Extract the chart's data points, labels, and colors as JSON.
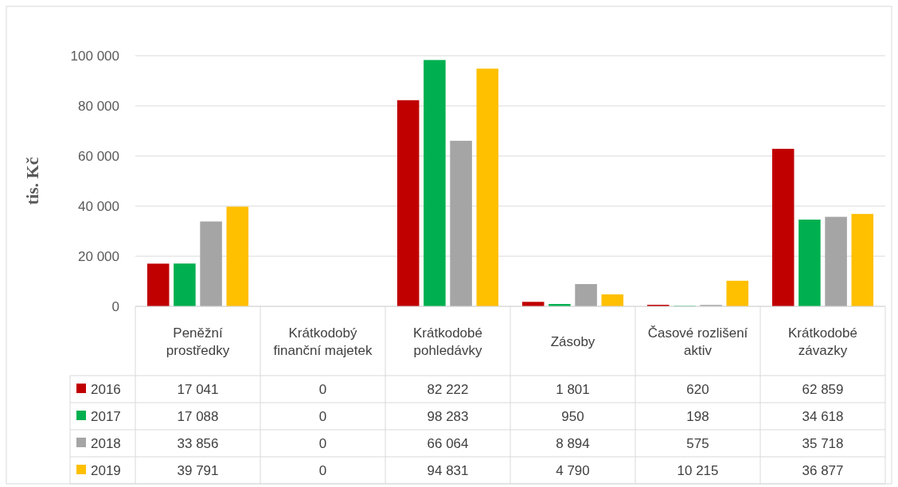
{
  "chart_data": {
    "type": "bar",
    "ylabel": "tis. Kč",
    "categories": [
      "Peněžní prostředky",
      "Krátkodobý finanční majetek",
      "Krátkodobé pohledávky",
      "Zásoby",
      "Časové rozlišení aktiv",
      "Krátkodobé závazky"
    ],
    "series": [
      {
        "name": "2016",
        "color": "#c00000",
        "values": [
          17041,
          0,
          82222,
          1801,
          620,
          62859
        ],
        "value_labels": [
          "17 041",
          "0",
          "82 222",
          "1 801",
          "620",
          "62 859"
        ]
      },
      {
        "name": "2017",
        "color": "#00b050",
        "values": [
          17088,
          0,
          98283,
          950,
          198,
          34618
        ],
        "value_labels": [
          "17 088",
          "0",
          "98 283",
          "950",
          "198",
          "34 618"
        ]
      },
      {
        "name": "2018",
        "color": "#a5a5a5",
        "values": [
          33856,
          0,
          66064,
          8894,
          575,
          35718
        ],
        "value_labels": [
          "33 856",
          "0",
          "66 064",
          "8 894",
          "575",
          "35 718"
        ]
      },
      {
        "name": "2019",
        "color": "#ffc000",
        "values": [
          39791,
          0,
          94831,
          4790,
          10215,
          36877
        ],
        "value_labels": [
          "39 791",
          "0",
          "94 831",
          "4 790",
          "10 215",
          "36 877"
        ]
      }
    ],
    "ylim": [
      0,
      100000
    ],
    "yticks": [
      {
        "value": 0,
        "label": "0"
      },
      {
        "value": 20000,
        "label": "20 000"
      },
      {
        "value": 40000,
        "label": "40 000"
      },
      {
        "value": 60000,
        "label": "60 000"
      },
      {
        "value": 80000,
        "label": "80 000"
      },
      {
        "value": 100000,
        "label": "100 000"
      }
    ],
    "grid": "y",
    "legend": "bottom"
  }
}
